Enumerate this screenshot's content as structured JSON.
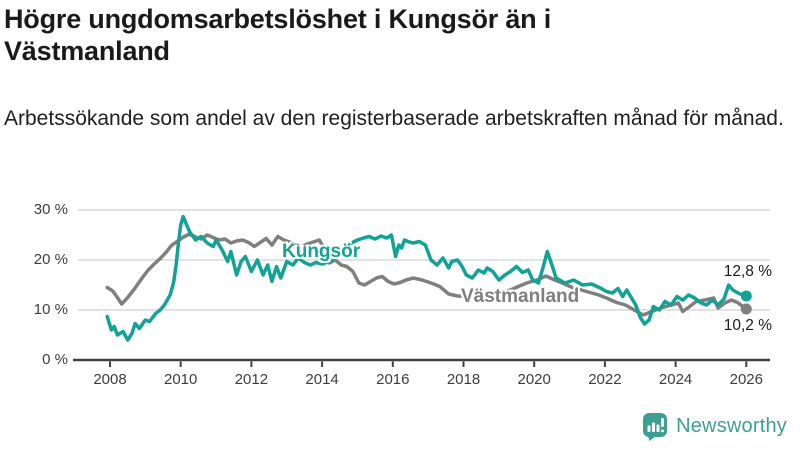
{
  "header": {
    "title": "Högre ungdomsarbetslöshet i Kungsör än i Västmanland",
    "subtitle": "Arbetssökande som andel av den registerbaserade arbetskraften månad för månad."
  },
  "footer": {
    "brand": "Newsworthy"
  },
  "colors": {
    "kungsor": "#12a296",
    "vastmanland": "#7f7f7f",
    "logo_teal": "#3f9e92",
    "gridline": "#d8d8d8",
    "axis": "#404040",
    "text": "#1a1a1a"
  },
  "chart_data": {
    "type": "line",
    "title": "Högre ungdomsarbetslöshet i Kungsör än i Västmanland",
    "xlabel": "",
    "ylabel": "Arbetssökande som andel av den registerbaserade arbetskraften",
    "ylim": [
      0,
      30
    ],
    "xlim": [
      2007.9,
      2026.6
    ],
    "grid": "horizontal",
    "legend_position": "inline-labels",
    "y_ticks": [
      {
        "value": 30,
        "label": "30 %"
      },
      {
        "value": 20,
        "label": "20 %"
      },
      {
        "value": 10,
        "label": "10 %"
      },
      {
        "value": 0,
        "label": "0 %"
      }
    ],
    "x_ticks": [
      2008,
      2010,
      2012,
      2014,
      2016,
      2018,
      2020,
      2022,
      2024,
      2026
    ],
    "end_labels": {
      "kungsor": "12,8 %",
      "vastmanland": "10,2 %"
    },
    "series": [
      {
        "name": "Västmanland",
        "color": "#7f7f7f",
        "points": [
          [
            2007.92,
            14.5
          ],
          [
            2008.08,
            13.8
          ],
          [
            2008.21,
            12.5
          ],
          [
            2008.33,
            11.2
          ],
          [
            2008.5,
            12.5
          ],
          [
            2008.71,
            14.4
          ],
          [
            2008.92,
            16.5
          ],
          [
            2009.08,
            18.0
          ],
          [
            2009.25,
            19.2
          ],
          [
            2009.42,
            20.3
          ],
          [
            2009.58,
            21.5
          ],
          [
            2009.75,
            23.0
          ],
          [
            2009.92,
            23.8
          ],
          [
            2010.08,
            24.6
          ],
          [
            2010.25,
            25.2
          ],
          [
            2010.42,
            24.6
          ],
          [
            2010.58,
            24.2
          ],
          [
            2010.75,
            25.0
          ],
          [
            2010.92,
            24.5
          ],
          [
            2011.08,
            24.0
          ],
          [
            2011.25,
            24.2
          ],
          [
            2011.42,
            23.4
          ],
          [
            2011.58,
            23.8
          ],
          [
            2011.75,
            24.0
          ],
          [
            2011.92,
            23.5
          ],
          [
            2012.08,
            22.7
          ],
          [
            2012.25,
            23.5
          ],
          [
            2012.42,
            24.3
          ],
          [
            2012.58,
            23.0
          ],
          [
            2012.75,
            24.7
          ],
          [
            2012.92,
            24.0
          ],
          [
            2013.08,
            23.6
          ],
          [
            2013.25,
            23.0
          ],
          [
            2013.42,
            22.7
          ],
          [
            2013.58,
            23.2
          ],
          [
            2013.75,
            23.6
          ],
          [
            2013.92,
            24.0
          ],
          [
            2014.08,
            22.0
          ],
          [
            2014.21,
            19.4
          ],
          [
            2014.37,
            20.0
          ],
          [
            2014.54,
            19.0
          ],
          [
            2014.7,
            18.7
          ],
          [
            2014.87,
            17.7
          ],
          [
            2015.04,
            15.4
          ],
          [
            2015.2,
            15.0
          ],
          [
            2015.37,
            15.7
          ],
          [
            2015.54,
            16.4
          ],
          [
            2015.7,
            16.7
          ],
          [
            2015.87,
            15.7
          ],
          [
            2016.04,
            15.2
          ],
          [
            2016.21,
            15.5
          ],
          [
            2016.37,
            16.0
          ],
          [
            2016.58,
            16.4
          ],
          [
            2016.83,
            16.0
          ],
          [
            2017.08,
            15.4
          ],
          [
            2017.33,
            14.7
          ],
          [
            2017.58,
            13.2
          ],
          [
            2017.83,
            12.8
          ],
          [
            2018.08,
            12.7
          ],
          [
            2018.33,
            13.7
          ],
          [
            2018.58,
            13.0
          ],
          [
            2018.83,
            13.2
          ],
          [
            2019.08,
            13.5
          ],
          [
            2019.33,
            14.0
          ],
          [
            2019.58,
            14.8
          ],
          [
            2019.83,
            15.5
          ],
          [
            2020.08,
            16.0
          ],
          [
            2020.33,
            16.8
          ],
          [
            2020.58,
            16.0
          ],
          [
            2020.83,
            15.3
          ],
          [
            2021.08,
            14.5
          ],
          [
            2021.33,
            14.0
          ],
          [
            2021.58,
            13.5
          ],
          [
            2021.83,
            13.0
          ],
          [
            2022.08,
            12.3
          ],
          [
            2022.33,
            11.5
          ],
          [
            2022.58,
            11.0
          ],
          [
            2022.83,
            10.0
          ],
          [
            2023.08,
            9.0
          ],
          [
            2023.33,
            9.7
          ],
          [
            2023.58,
            10.4
          ],
          [
            2023.83,
            10.9
          ],
          [
            2024.08,
            11.4
          ],
          [
            2024.2,
            9.7
          ],
          [
            2024.42,
            10.8
          ],
          [
            2024.58,
            11.7
          ],
          [
            2024.83,
            12.0
          ],
          [
            2025.08,
            12.4
          ],
          [
            2025.2,
            10.4
          ],
          [
            2025.42,
            11.5
          ],
          [
            2025.58,
            12.0
          ],
          [
            2025.75,
            11.5
          ],
          [
            2026.0,
            10.2
          ]
        ]
      },
      {
        "name": "Kungsör",
        "color": "#12a296",
        "points": [
          [
            2007.92,
            8.7
          ],
          [
            2008.04,
            6.0
          ],
          [
            2008.12,
            6.7
          ],
          [
            2008.21,
            5.0
          ],
          [
            2008.37,
            5.7
          ],
          [
            2008.5,
            4.0
          ],
          [
            2008.62,
            5.3
          ],
          [
            2008.71,
            7.3
          ],
          [
            2008.83,
            6.3
          ],
          [
            2009.0,
            8.0
          ],
          [
            2009.12,
            7.7
          ],
          [
            2009.29,
            9.3
          ],
          [
            2009.42,
            10.0
          ],
          [
            2009.54,
            11.0
          ],
          [
            2009.7,
            13.0
          ],
          [
            2009.8,
            15.5
          ],
          [
            2009.87,
            19.0
          ],
          [
            2009.93,
            23.0
          ],
          [
            2010.0,
            27.0
          ],
          [
            2010.07,
            28.7
          ],
          [
            2010.17,
            27.0
          ],
          [
            2010.25,
            25.7
          ],
          [
            2010.42,
            24.0
          ],
          [
            2010.58,
            24.7
          ],
          [
            2010.75,
            23.4
          ],
          [
            2010.92,
            22.7
          ],
          [
            2011.0,
            24.0
          ],
          [
            2011.17,
            22.0
          ],
          [
            2011.33,
            19.7
          ],
          [
            2011.42,
            21.7
          ],
          [
            2011.58,
            17.0
          ],
          [
            2011.71,
            19.7
          ],
          [
            2011.83,
            20.7
          ],
          [
            2012.0,
            17.7
          ],
          [
            2012.17,
            20.0
          ],
          [
            2012.33,
            17.0
          ],
          [
            2012.46,
            19.0
          ],
          [
            2012.58,
            15.7
          ],
          [
            2012.71,
            18.7
          ],
          [
            2012.83,
            16.4
          ],
          [
            2013.0,
            19.7
          ],
          [
            2013.17,
            19.0
          ],
          [
            2013.33,
            20.4
          ],
          [
            2013.5,
            19.5
          ],
          [
            2013.67,
            19.0
          ],
          [
            2013.83,
            19.5
          ],
          [
            2014.0,
            19.2
          ],
          [
            2014.17,
            19.6
          ],
          [
            2014.33,
            20.3
          ],
          [
            2014.5,
            21.3
          ],
          [
            2014.67,
            22.4
          ],
          [
            2014.83,
            23.4
          ],
          [
            2015.0,
            24.0
          ],
          [
            2015.17,
            24.4
          ],
          [
            2015.33,
            24.7
          ],
          [
            2015.5,
            24.2
          ],
          [
            2015.67,
            24.8
          ],
          [
            2015.83,
            24.4
          ],
          [
            2015.96,
            25.0
          ],
          [
            2016.08,
            20.7
          ],
          [
            2016.17,
            23.0
          ],
          [
            2016.25,
            22.4
          ],
          [
            2016.33,
            24.0
          ],
          [
            2016.46,
            23.6
          ],
          [
            2016.58,
            23.4
          ],
          [
            2016.75,
            23.7
          ],
          [
            2016.92,
            23.0
          ],
          [
            2017.08,
            20.0
          ],
          [
            2017.25,
            19.0
          ],
          [
            2017.42,
            20.4
          ],
          [
            2017.58,
            18.4
          ],
          [
            2017.67,
            19.7
          ],
          [
            2017.83,
            20.0
          ],
          [
            2017.96,
            18.7
          ],
          [
            2018.08,
            17.0
          ],
          [
            2018.25,
            16.4
          ],
          [
            2018.42,
            18.0
          ],
          [
            2018.58,
            17.4
          ],
          [
            2018.67,
            18.4
          ],
          [
            2018.83,
            17.7
          ],
          [
            2019.0,
            16.0
          ],
          [
            2019.17,
            17.0
          ],
          [
            2019.33,
            17.7
          ],
          [
            2019.5,
            18.7
          ],
          [
            2019.67,
            17.5
          ],
          [
            2019.83,
            18.0
          ],
          [
            2019.96,
            16.0
          ],
          [
            2020.12,
            15.4
          ],
          [
            2020.25,
            18.5
          ],
          [
            2020.37,
            21.7
          ],
          [
            2020.5,
            19.0
          ],
          [
            2020.62,
            16.4
          ],
          [
            2020.87,
            15.4
          ],
          [
            2021.12,
            16.0
          ],
          [
            2021.37,
            15.0
          ],
          [
            2021.62,
            15.2
          ],
          [
            2021.87,
            14.4
          ],
          [
            2022.04,
            13.7
          ],
          [
            2022.21,
            13.4
          ],
          [
            2022.37,
            14.3
          ],
          [
            2022.5,
            12.7
          ],
          [
            2022.62,
            14.0
          ],
          [
            2022.87,
            11.0
          ],
          [
            2023.0,
            8.5
          ],
          [
            2023.12,
            7.2
          ],
          [
            2023.25,
            8.0
          ],
          [
            2023.37,
            10.7
          ],
          [
            2023.54,
            10.0
          ],
          [
            2023.7,
            11.7
          ],
          [
            2023.87,
            11.0
          ],
          [
            2024.04,
            12.7
          ],
          [
            2024.2,
            12.0
          ],
          [
            2024.37,
            13.0
          ],
          [
            2024.54,
            12.4
          ],
          [
            2024.7,
            11.5
          ],
          [
            2024.87,
            11.0
          ],
          [
            2025.04,
            12.0
          ],
          [
            2025.2,
            11.0
          ],
          [
            2025.37,
            12.2
          ],
          [
            2025.5,
            15.0
          ],
          [
            2025.62,
            14.0
          ],
          [
            2025.79,
            13.3
          ],
          [
            2026.0,
            12.8
          ]
        ]
      }
    ]
  }
}
